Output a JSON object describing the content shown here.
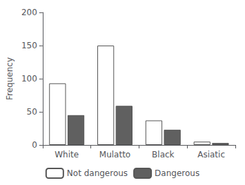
{
  "chart_data": {
    "type": "bar",
    "categories": [
      "White",
      "Mulatto",
      "Black",
      "Asiatic"
    ],
    "series": [
      {
        "name": "Not dangerous",
        "color": "#ffffff",
        "values": [
          93,
          150,
          37,
          5
        ]
      },
      {
        "name": "Dangerous",
        "color": "#606060",
        "values": [
          45,
          59,
          23,
          3
        ]
      }
    ],
    "ylabel": "Frequency",
    "ylim": [
      0,
      200
    ],
    "yticks": [
      0,
      50,
      100,
      150,
      200
    ],
    "grid": false,
    "legend": "bottom"
  }
}
